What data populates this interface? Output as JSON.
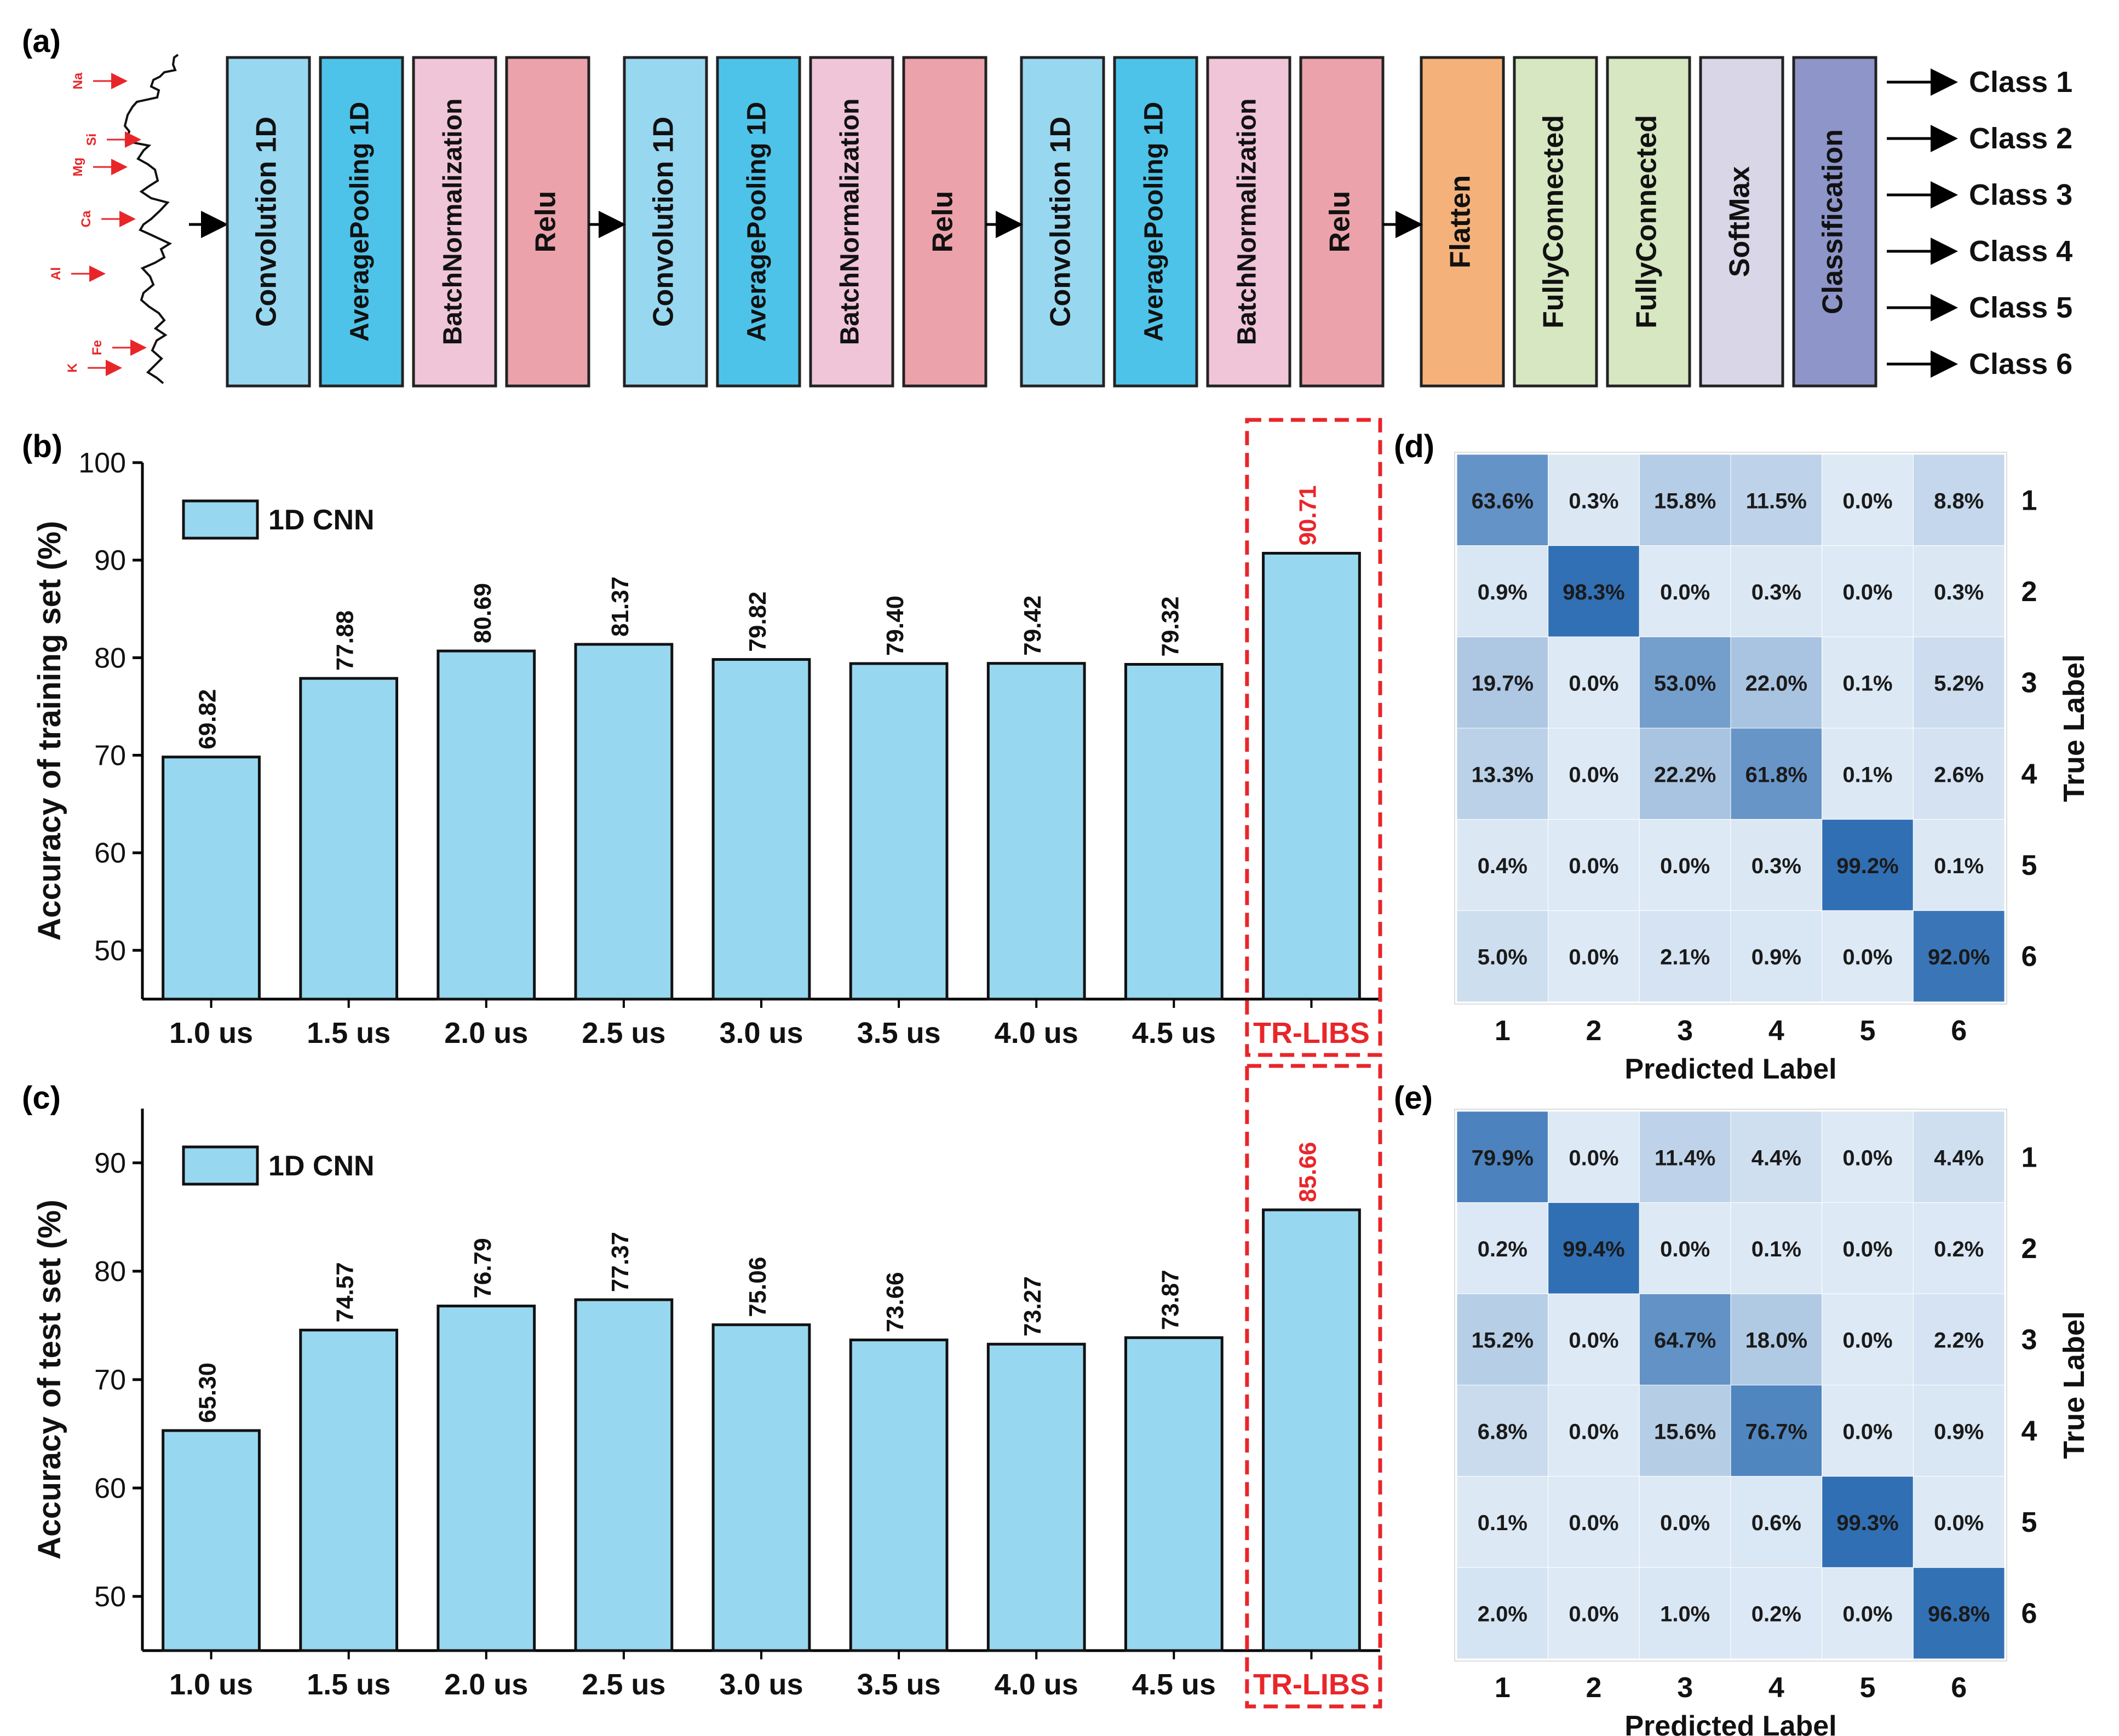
{
  "panels": {
    "a": "(a)",
    "b": "(b)",
    "c": "(c)",
    "d": "(d)",
    "e": "(e)"
  },
  "pipeline": {
    "layers": [
      {
        "label": "Convolution 1D",
        "color": "#98d7f0"
      },
      {
        "label": "AveragePooling 1D",
        "color": "#4ec3e9"
      },
      {
        "label": "BatchNormalization",
        "color": "#efc5d7"
      },
      {
        "label": "Relu",
        "color": "#eca2ab"
      },
      {
        "label": "Convolution 1D",
        "color": "#98d7f0"
      },
      {
        "label": "AveragePooling 1D",
        "color": "#4ec3e9"
      },
      {
        "label": "BatchNormalization",
        "color": "#efc5d7"
      },
      {
        "label": "Relu",
        "color": "#eca2ab"
      },
      {
        "label": "Convolution 1D",
        "color": "#98d7f0"
      },
      {
        "label": "AveragePooling 1D",
        "color": "#4ec3e9"
      },
      {
        "label": "BatchNormalization",
        "color": "#efc5d7"
      },
      {
        "label": "Relu",
        "color": "#eca2ab"
      },
      {
        "label": "Flatten",
        "color": "#f4b27a"
      },
      {
        "label": "FullyConnected",
        "color": "#d6e7c1"
      },
      {
        "label": "FullyConnected",
        "color": "#d6e7c1"
      },
      {
        "label": "SoftMax",
        "color": "#d9d6e8"
      },
      {
        "label": "Classification",
        "color": "#8d95c9"
      }
    ],
    "classes": [
      "Class 1",
      "Class 2",
      "Class 3",
      "Class 4",
      "Class 5",
      "Class 6"
    ],
    "spectrum_elements": [
      "Na",
      "Si",
      "Mg",
      "Ca",
      "Al",
      "Fe",
      "K"
    ]
  },
  "colors": {
    "bar_fill": "#98d7f0",
    "highlight": "#e8262a",
    "cm_low": "#dde9f5",
    "cm_high": "#2f6eb3"
  },
  "chart_data": [
    {
      "id": "b",
      "type": "bar",
      "categories": [
        "1.0 us",
        "1.5 us",
        "2.0 us",
        "2.5 us",
        "3.0 us",
        "3.5 us",
        "4.0 us",
        "4.5 us",
        "TR-LIBS"
      ],
      "values": [
        69.82,
        77.88,
        80.69,
        81.37,
        79.82,
        79.4,
        79.42,
        79.32,
        90.71
      ],
      "value_labels": [
        "69.82",
        "77.88",
        "80.69",
        "81.37",
        "79.82",
        "79.40",
        "79.42",
        "79.32",
        "90.71"
      ],
      "highlight_category": "TR-LIBS",
      "legend": "1D CNN",
      "legend_position": "top-left",
      "ylabel": "Accuracy of training set (%)",
      "ylim": [
        45,
        100
      ],
      "yticks": [
        50,
        60,
        70,
        80,
        90,
        100
      ]
    },
    {
      "id": "c",
      "type": "bar",
      "categories": [
        "1.0 us",
        "1.5 us",
        "2.0 us",
        "2.5 us",
        "3.0 us",
        "3.5 us",
        "4.0 us",
        "4.5 us",
        "TR-LIBS"
      ],
      "values": [
        65.3,
        74.57,
        76.79,
        77.37,
        75.06,
        73.66,
        73.27,
        73.87,
        85.66
      ],
      "value_labels": [
        "65.30",
        "74.57",
        "76.79",
        "77.37",
        "75.06",
        "73.66",
        "73.27",
        "73.87",
        "85.66"
      ],
      "highlight_category": "TR-LIBS",
      "legend": "1D CNN",
      "legend_position": "top-left",
      "ylabel": "Accuracy of test set (%)",
      "ylim": [
        45,
        95
      ],
      "yticks": [
        50,
        60,
        70,
        80,
        90
      ]
    },
    {
      "id": "d",
      "type": "heatmap",
      "xlabel": "Predicted Label",
      "ylabel": "True Label",
      "x_labels": [
        "1",
        "2",
        "3",
        "4",
        "5",
        "6"
      ],
      "y_labels": [
        "1",
        "2",
        "3",
        "4",
        "5",
        "6"
      ],
      "values": [
        [
          63.6,
          0.3,
          15.8,
          11.5,
          0.0,
          8.8
        ],
        [
          0.9,
          98.3,
          0.0,
          0.3,
          0.0,
          0.3
        ],
        [
          19.7,
          0.0,
          53.0,
          22.0,
          0.1,
          5.2
        ],
        [
          13.3,
          0.0,
          22.2,
          61.8,
          0.1,
          2.6
        ],
        [
          0.4,
          0.0,
          0.0,
          0.3,
          99.2,
          0.1
        ],
        [
          5.0,
          0.0,
          2.1,
          0.9,
          0.0,
          92.0
        ]
      ],
      "labels": [
        [
          "63.6%",
          "0.3%",
          "15.8%",
          "11.5%",
          "0.0%",
          "8.8%"
        ],
        [
          "0.9%",
          "98.3%",
          "0.0%",
          "0.3%",
          "0.0%",
          "0.3%"
        ],
        [
          "19.7%",
          "0.0%",
          "53.0%",
          "22.0%",
          "0.1%",
          "5.2%"
        ],
        [
          "13.3%",
          "0.0%",
          "22.2%",
          "61.8%",
          "0.1%",
          "2.6%"
        ],
        [
          "0.4%",
          "0.0%",
          "0.0%",
          "0.3%",
          "99.2%",
          "0.1%"
        ],
        [
          "5.0%",
          "0.0%",
          "2.1%",
          "0.9%",
          "0.0%",
          "92.0%"
        ]
      ]
    },
    {
      "id": "e",
      "type": "heatmap",
      "xlabel": "Predicted Label",
      "ylabel": "True Label",
      "x_labels": [
        "1",
        "2",
        "3",
        "4",
        "5",
        "6"
      ],
      "y_labels": [
        "1",
        "2",
        "3",
        "4",
        "5",
        "6"
      ],
      "values": [
        [
          79.9,
          0.0,
          11.4,
          4.4,
          0.0,
          4.4
        ],
        [
          0.2,
          99.4,
          0.0,
          0.1,
          0.0,
          0.2
        ],
        [
          15.2,
          0.0,
          64.7,
          18.0,
          0.0,
          2.2
        ],
        [
          6.8,
          0.0,
          15.6,
          76.7,
          0.0,
          0.9
        ],
        [
          0.1,
          0.0,
          0.0,
          0.6,
          99.3,
          0.0
        ],
        [
          2.0,
          0.0,
          1.0,
          0.2,
          0.0,
          96.8
        ]
      ],
      "labels": [
        [
          "79.9%",
          "0.0%",
          "11.4%",
          "4.4%",
          "0.0%",
          "4.4%"
        ],
        [
          "0.2%",
          "99.4%",
          "0.0%",
          "0.1%",
          "0.0%",
          "0.2%"
        ],
        [
          "15.2%",
          "0.0%",
          "64.7%",
          "18.0%",
          "0.0%",
          "2.2%"
        ],
        [
          "6.8%",
          "0.0%",
          "15.6%",
          "76.7%",
          "0.0%",
          "0.9%"
        ],
        [
          "0.1%",
          "0.0%",
          "0.0%",
          "0.6%",
          "99.3%",
          "0.0%"
        ],
        [
          "2.0%",
          "0.0%",
          "1.0%",
          "0.2%",
          "0.0%",
          "96.8%"
        ]
      ]
    }
  ]
}
